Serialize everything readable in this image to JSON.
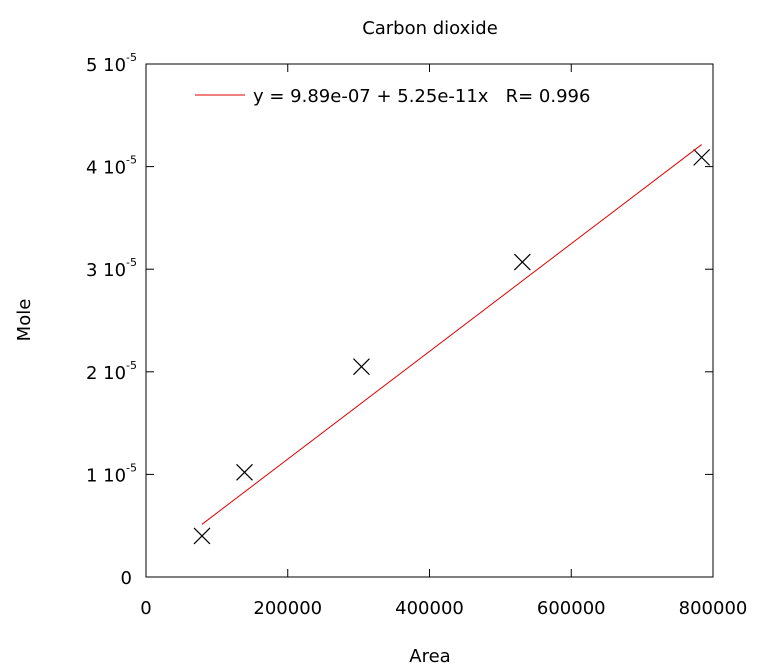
{
  "chart_data": {
    "type": "scatter",
    "title": "Carbon dioxide",
    "x_label": "Area",
    "y_label": "Mole",
    "xlim": [
      0,
      800000
    ],
    "xticks": [
      0,
      200000,
      400000,
      600000,
      800000
    ],
    "ylim": [
      0,
      5e-05
    ],
    "yticks": [
      0,
      {
        "value": 1e-05,
        "label": "1 10",
        "exponent": "-5"
      },
      {
        "value": 2e-05,
        "label": "2 10",
        "exponent": "-5"
      },
      {
        "value": 3e-05,
        "label": "3 10",
        "exponent": "-5"
      },
      {
        "value": 4e-05,
        "label": "4 10",
        "exponent": "-5"
      },
      {
        "value": 5e-05,
        "label": "5 10",
        "exponent": "-5"
      }
    ],
    "grid": false,
    "legend": "top-left",
    "series": [
      {
        "color": "#000000",
        "mode": "markers",
        "x": [
          79000,
          139000,
          304000,
          531000,
          784000
        ],
        "values": [
          4e-06,
          1.02e-05,
          2.05e-05,
          3.07e-05,
          4.09e-05
        ]
      },
      {
        "name": "y = 9.89e-07 + 5.25e-11x   R= 0.996",
        "color": "#e00000",
        "mode": "line",
        "x": [
          79000,
          784000
        ],
        "values": [
          5.1365e-06,
          4.2149e-05
        ]
      }
    ]
  }
}
